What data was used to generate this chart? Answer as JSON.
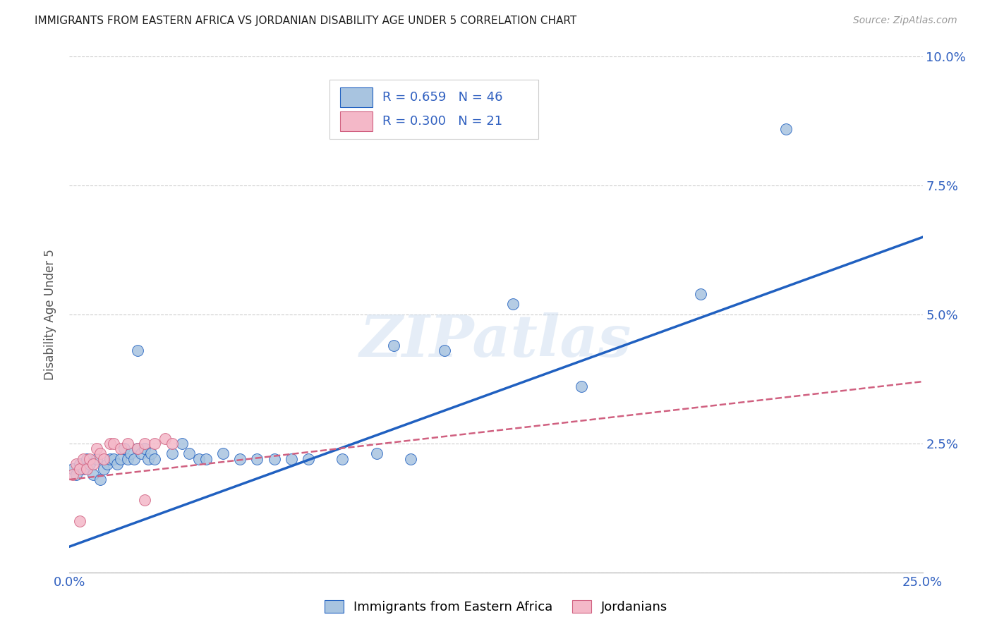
{
  "title": "IMMIGRANTS FROM EASTERN AFRICA VS JORDANIAN DISABILITY AGE UNDER 5 CORRELATION CHART",
  "source": "Source: ZipAtlas.com",
  "ylabel": "Disability Age Under 5",
  "xlim": [
    0.0,
    0.25
  ],
  "ylim": [
    0.0,
    0.1
  ],
  "xticks": [
    0.0,
    0.05,
    0.1,
    0.15,
    0.2,
    0.25
  ],
  "yticks": [
    0.0,
    0.025,
    0.05,
    0.075,
    0.1
  ],
  "xticklabels": [
    "0.0%",
    "",
    "",
    "",
    "",
    "25.0%"
  ],
  "yticklabels_right": [
    "",
    "2.5%",
    "5.0%",
    "7.5%",
    "10.0%"
  ],
  "blue_R": 0.659,
  "blue_N": 46,
  "pink_R": 0.3,
  "pink_N": 21,
  "blue_color": "#a8c4e0",
  "pink_color": "#f4b8c8",
  "blue_line_color": "#2060c0",
  "pink_line_color": "#d06080",
  "legend_text_color": "#3060c0",
  "background_color": "#ffffff",
  "grid_color": "#cccccc",
  "blue_scatter": [
    [
      0.001,
      0.02
    ],
    [
      0.002,
      0.019
    ],
    [
      0.003,
      0.021
    ],
    [
      0.004,
      0.02
    ],
    [
      0.005,
      0.022
    ],
    [
      0.006,
      0.021
    ],
    [
      0.007,
      0.019
    ],
    [
      0.008,
      0.022
    ],
    [
      0.009,
      0.018
    ],
    [
      0.01,
      0.02
    ],
    [
      0.011,
      0.021
    ],
    [
      0.012,
      0.022
    ],
    [
      0.013,
      0.022
    ],
    [
      0.014,
      0.021
    ],
    [
      0.015,
      0.022
    ],
    [
      0.016,
      0.024
    ],
    [
      0.017,
      0.022
    ],
    [
      0.018,
      0.023
    ],
    [
      0.019,
      0.022
    ],
    [
      0.02,
      0.024
    ],
    [
      0.021,
      0.023
    ],
    [
      0.022,
      0.024
    ],
    [
      0.023,
      0.022
    ],
    [
      0.024,
      0.023
    ],
    [
      0.025,
      0.022
    ],
    [
      0.03,
      0.023
    ],
    [
      0.033,
      0.025
    ],
    [
      0.035,
      0.023
    ],
    [
      0.038,
      0.022
    ],
    [
      0.04,
      0.022
    ],
    [
      0.045,
      0.023
    ],
    [
      0.05,
      0.022
    ],
    [
      0.055,
      0.022
    ],
    [
      0.06,
      0.022
    ],
    [
      0.065,
      0.022
    ],
    [
      0.07,
      0.022
    ],
    [
      0.08,
      0.022
    ],
    [
      0.09,
      0.023
    ],
    [
      0.1,
      0.022
    ],
    [
      0.095,
      0.044
    ],
    [
      0.11,
      0.043
    ],
    [
      0.13,
      0.052
    ],
    [
      0.15,
      0.036
    ],
    [
      0.185,
      0.054
    ],
    [
      0.21,
      0.086
    ],
    [
      0.02,
      0.043
    ]
  ],
  "pink_scatter": [
    [
      0.001,
      0.019
    ],
    [
      0.002,
      0.021
    ],
    [
      0.003,
      0.02
    ],
    [
      0.004,
      0.022
    ],
    [
      0.005,
      0.02
    ],
    [
      0.006,
      0.022
    ],
    [
      0.007,
      0.021
    ],
    [
      0.008,
      0.024
    ],
    [
      0.009,
      0.023
    ],
    [
      0.01,
      0.022
    ],
    [
      0.012,
      0.025
    ],
    [
      0.013,
      0.025
    ],
    [
      0.015,
      0.024
    ],
    [
      0.017,
      0.025
    ],
    [
      0.02,
      0.024
    ],
    [
      0.022,
      0.025
    ],
    [
      0.025,
      0.025
    ],
    [
      0.028,
      0.026
    ],
    [
      0.03,
      0.025
    ],
    [
      0.003,
      0.01
    ],
    [
      0.022,
      0.014
    ]
  ],
  "blue_line": [
    [
      0.0,
      0.005
    ],
    [
      0.25,
      0.065
    ]
  ],
  "pink_line": [
    [
      0.0,
      0.018
    ],
    [
      0.25,
      0.037
    ]
  ],
  "watermark": "ZIPatlas",
  "figsize": [
    14.06,
    8.92
  ],
  "dpi": 100
}
